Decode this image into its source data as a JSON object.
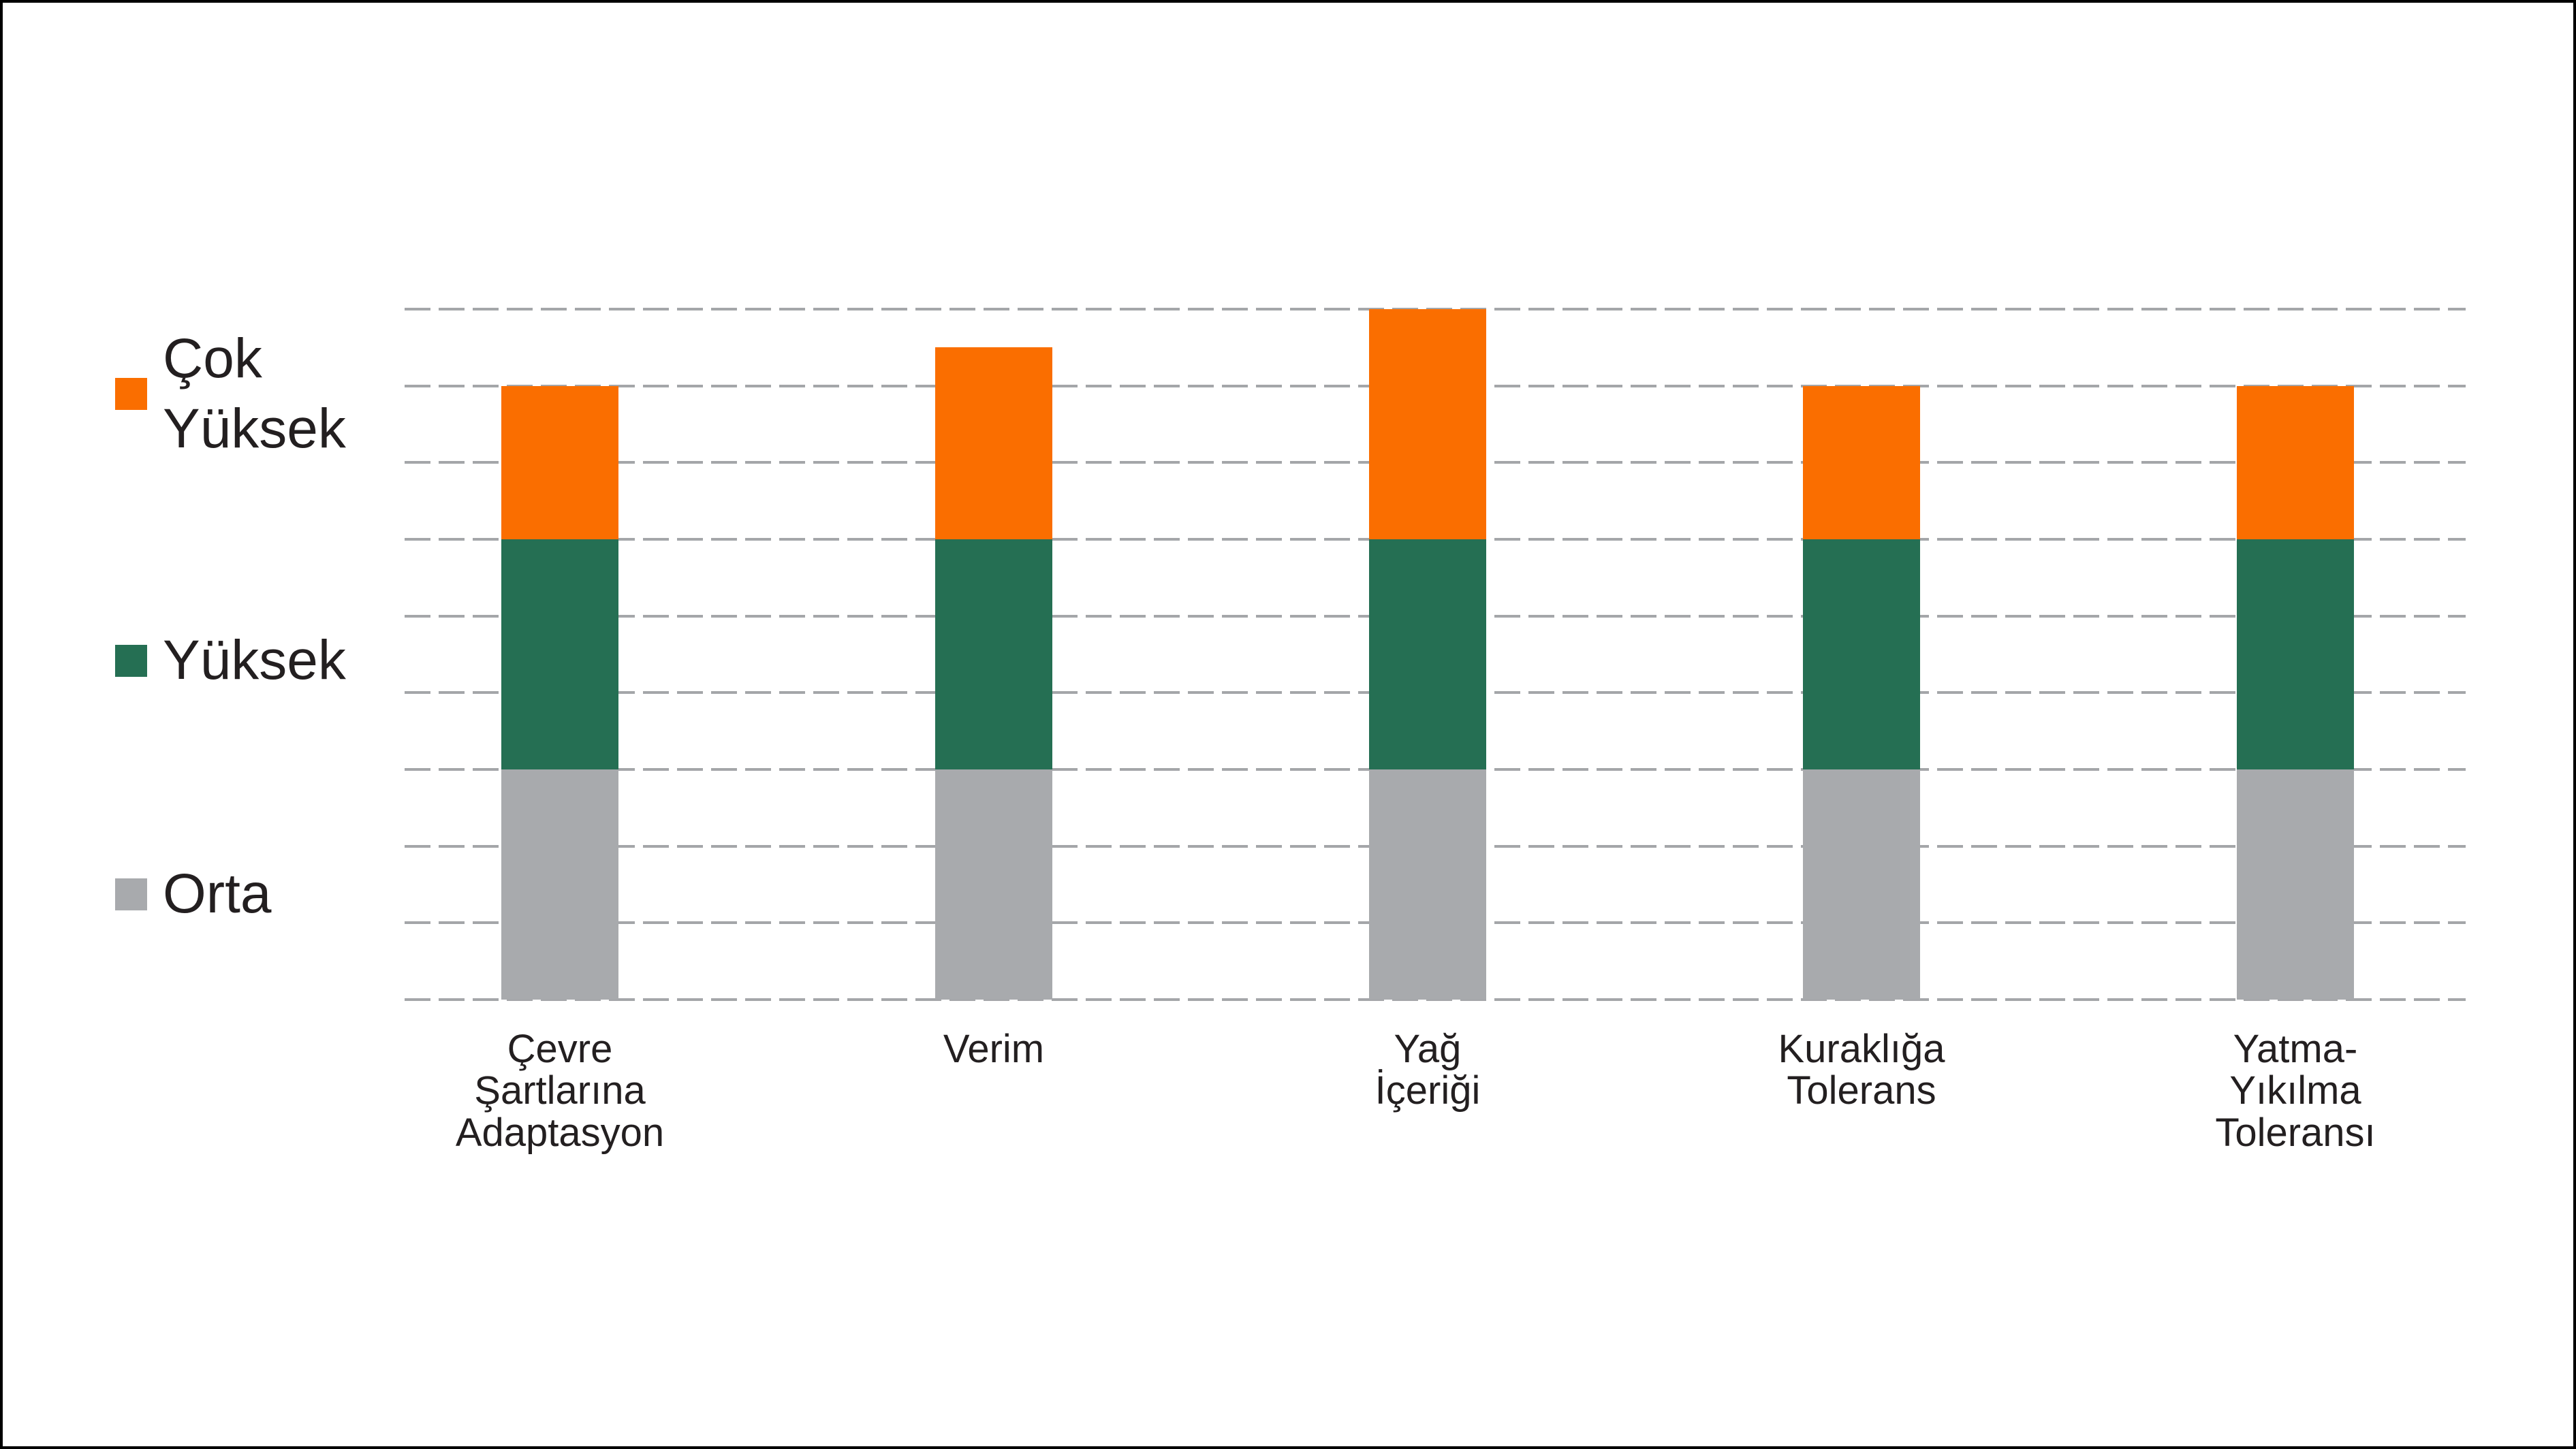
{
  "page": {
    "background_color": "#FFFFFF",
    "border_color": "#000000",
    "text_color": "#231F20"
  },
  "legend": {
    "items": [
      {
        "label": "Çok\nYüksek",
        "series": "Çok Yüksek",
        "color": "#FA6E00"
      },
      {
        "label": "Yüksek",
        "series": "Yüksek",
        "color": "#256F53"
      },
      {
        "label": "Orta",
        "series": "Orta",
        "color": "#A8AAAD"
      }
    ]
  },
  "chart_data": {
    "type": "bar",
    "stacked": true,
    "title": "",
    "xlabel": "",
    "ylabel": "",
    "categories": [
      "Çevre\nŞartlarına\nAdaptasyon",
      "Verim",
      "Yağ\nİçeriği",
      "Kuraklığa\nTolerans",
      "Yatma-\nYıkılma\nToleransı"
    ],
    "series": [
      {
        "name": "Orta",
        "color": "#A8AAAD",
        "values": [
          3,
          3,
          3,
          3,
          3
        ]
      },
      {
        "name": "Yüksek",
        "color": "#256F53",
        "values": [
          3,
          3,
          3,
          3,
          3
        ]
      },
      {
        "name": "Çok Yüksek",
        "color": "#FA6E00",
        "values": [
          2,
          2.5,
          3,
          2,
          2
        ]
      }
    ],
    "stack_totals": [
      8,
      8.5,
      9,
      8,
      8
    ],
    "ylim": [
      0,
      9
    ],
    "grid": {
      "visible": true,
      "step": 1,
      "style": "dashed",
      "color": "#A4A6A9"
    },
    "legend_position": "left",
    "axis_tick_labels": "none"
  }
}
